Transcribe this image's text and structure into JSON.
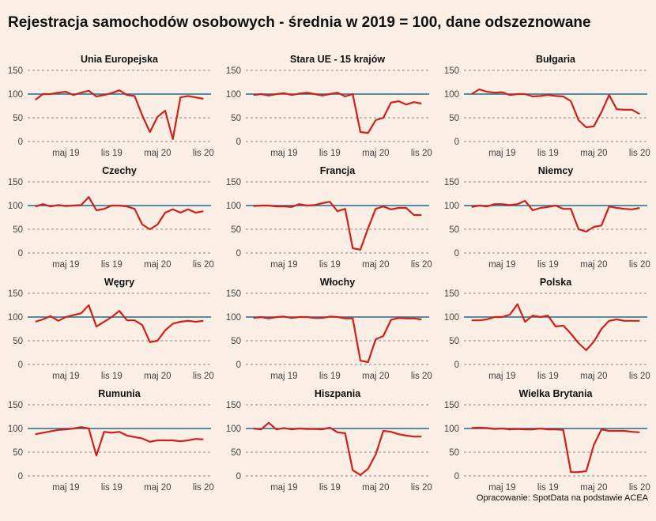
{
  "title": "Rejestracja samochodów osobowych - średnia w 2019 = 100, dane odszeznowane",
  "caption": "Opracowanie: SpotData na podstawie ACEA",
  "colors": {
    "background": "#fbeee4",
    "series_line": "#d0201a",
    "reference_line": "#1f6b8e",
    "grid": "#666666",
    "text": "#111111"
  },
  "chart_data": {
    "type": "line",
    "layout": "small multiples 3x4",
    "ylim": [
      0,
      150
    ],
    "yticks": [
      0,
      50,
      100,
      150
    ],
    "xticks": [
      {
        "index": 4,
        "label": "maj 19"
      },
      {
        "index": 10,
        "label": "lis 19"
      },
      {
        "index": 16,
        "label": "maj 20"
      },
      {
        "index": 22,
        "label": "lis 20"
      }
    ],
    "xrange": [
      -1,
      23
    ],
    "reference_line": 100,
    "grid": "dashed horizontal at y ticks",
    "panels": [
      {
        "title": "Unia Europejska",
        "values": [
          88,
          100,
          100,
          103,
          105,
          98,
          103,
          107,
          95,
          98,
          102,
          108,
          98,
          96,
          55,
          20,
          52,
          65,
          5,
          93,
          96,
          93,
          90
        ]
      },
      {
        "title": "Stara UE - 15 krajów",
        "values": [
          98,
          100,
          97,
          100,
          102,
          98,
          101,
          103,
          100,
          97,
          100,
          103,
          95,
          100,
          20,
          18,
          45,
          50,
          82,
          85,
          78,
          83,
          80
        ]
      },
      {
        "title": "Bułgaria",
        "values": [
          100,
          110,
          105,
          103,
          104,
          98,
          100,
          100,
          95,
          96,
          98,
          96,
          95,
          85,
          45,
          30,
          32,
          62,
          98,
          68,
          67,
          67,
          58
        ]
      },
      {
        "title": "Czechy",
        "values": [
          98,
          103,
          98,
          101,
          99,
          100,
          101,
          118,
          90,
          93,
          100,
          100,
          98,
          93,
          60,
          50,
          60,
          85,
          92,
          85,
          92,
          85,
          88
        ]
      },
      {
        "title": "Francja",
        "values": [
          99,
          100,
          100,
          98,
          98,
          97,
          103,
          100,
          101,
          105,
          108,
          88,
          93,
          10,
          7,
          52,
          93,
          98,
          92,
          95,
          95,
          80,
          80
        ]
      },
      {
        "title": "Niemcy",
        "values": [
          97,
          100,
          98,
          103,
          103,
          101,
          103,
          110,
          90,
          95,
          97,
          100,
          93,
          93,
          50,
          45,
          55,
          58,
          98,
          95,
          93,
          92,
          95
        ]
      },
      {
        "title": "Węgry",
        "values": [
          90,
          95,
          102,
          92,
          100,
          104,
          108,
          125,
          80,
          90,
          100,
          113,
          93,
          93,
          83,
          47,
          50,
          72,
          86,
          90,
          92,
          90,
          92
        ]
      },
      {
        "title": "Włochy",
        "values": [
          98,
          100,
          97,
          100,
          101,
          98,
          100,
          100,
          98,
          98,
          101,
          100,
          97,
          97,
          8,
          5,
          53,
          60,
          94,
          98,
          97,
          97,
          95
        ]
      },
      {
        "title": "Polska",
        "values": [
          93,
          93,
          95,
          100,
          100,
          105,
          127,
          90,
          103,
          100,
          103,
          80,
          82,
          65,
          45,
          30,
          48,
          75,
          92,
          95,
          92,
          92,
          92
        ]
      },
      {
        "title": "Rumunia",
        "values": [
          88,
          91,
          94,
          97,
          98,
          100,
          103,
          100,
          43,
          93,
          91,
          93,
          85,
          82,
          79,
          72,
          75,
          75,
          75,
          73,
          75,
          78,
          77
        ]
      },
      {
        "title": "Hiszpania",
        "values": [
          100,
          98,
          112,
          98,
          101,
          98,
          100,
          99,
          99,
          98,
          102,
          92,
          90,
          12,
          2,
          15,
          45,
          95,
          93,
          88,
          85,
          83,
          83
        ]
      },
      {
        "title": "Wielka Brytania",
        "values": [
          101,
          102,
          101,
          99,
          100,
          98,
          99,
          98,
          98,
          100,
          98,
          98,
          97,
          8,
          8,
          10,
          65,
          98,
          95,
          95,
          95,
          93,
          92
        ]
      }
    ]
  }
}
